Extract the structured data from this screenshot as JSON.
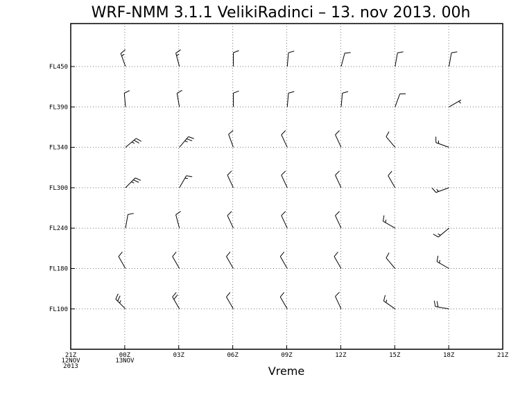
{
  "chart_data": {
    "type": "wind_barbs",
    "title": "WRF-NMM 3.1.1 VelikiRadinci – 13. nov 2013. 00h",
    "xlabel": "Vreme",
    "ylabel": "",
    "x_ticks": [
      {
        "label": "21Z",
        "sub": [
          "12NOV",
          "2013"
        ]
      },
      {
        "label": "00Z",
        "sub": [
          "13NOV"
        ]
      },
      {
        "label": "03Z",
        "sub": []
      },
      {
        "label": "06Z",
        "sub": []
      },
      {
        "label": "09Z",
        "sub": []
      },
      {
        "label": "12Z",
        "sub": []
      },
      {
        "label": "15Z",
        "sub": []
      },
      {
        "label": "18Z",
        "sub": []
      },
      {
        "label": "21Z",
        "sub": []
      }
    ],
    "levels": [
      "FL450",
      "FL390",
      "FL340",
      "FL300",
      "FL240",
      "FL180",
      "FL100"
    ],
    "times": [
      "00Z",
      "03Z",
      "06Z",
      "09Z",
      "12Z",
      "15Z",
      "18Z"
    ],
    "barbs": [
      [
        {
          "dir": 340,
          "spd": 15
        },
        {
          "dir": 345,
          "spd": 15
        },
        {
          "dir": 0,
          "spd": 10
        },
        {
          "dir": 5,
          "spd": 10
        },
        {
          "dir": 15,
          "spd": 10
        },
        {
          "dir": 10,
          "spd": 10
        },
        {
          "dir": 10,
          "spd": 10
        }
      ],
      [
        {
          "dir": 355,
          "spd": 10
        },
        {
          "dir": 350,
          "spd": 10
        },
        {
          "dir": 0,
          "spd": 10
        },
        {
          "dir": 5,
          "spd": 10
        },
        {
          "dir": 5,
          "spd": 10
        },
        {
          "dir": 20,
          "spd": 10
        },
        {
          "dir": 60,
          "spd": 5
        }
      ],
      [
        {
          "dir": 50,
          "spd": 25
        },
        {
          "dir": 40,
          "spd": 25
        },
        {
          "dir": 340,
          "spd": 10
        },
        {
          "dir": 335,
          "spd": 10
        },
        {
          "dir": 335,
          "spd": 10
        },
        {
          "dir": 320,
          "spd": 10
        },
        {
          "dir": 290,
          "spd": 15
        }
      ],
      [
        {
          "dir": 45,
          "spd": 25
        },
        {
          "dir": 30,
          "spd": 15
        },
        {
          "dir": 335,
          "spd": 10
        },
        {
          "dir": 335,
          "spd": 10
        },
        {
          "dir": 335,
          "spd": 10
        },
        {
          "dir": 330,
          "spd": 10
        },
        {
          "dir": 250,
          "spd": 15
        }
      ],
      [
        {
          "dir": 10,
          "spd": 10
        },
        {
          "dir": 345,
          "spd": 10
        },
        {
          "dir": 335,
          "spd": 10
        },
        {
          "dir": 335,
          "spd": 10
        },
        {
          "dir": 335,
          "spd": 10
        },
        {
          "dir": 300,
          "spd": 15
        },
        {
          "dir": 230,
          "spd": 15
        }
      ],
      [
        {
          "dir": 330,
          "spd": 10
        },
        {
          "dir": 330,
          "spd": 10
        },
        {
          "dir": 330,
          "spd": 10
        },
        {
          "dir": 330,
          "spd": 10
        },
        {
          "dir": 330,
          "spd": 10
        },
        {
          "dir": 320,
          "spd": 10
        },
        {
          "dir": 300,
          "spd": 15
        }
      ],
      [
        {
          "dir": 315,
          "spd": 25
        },
        {
          "dir": 330,
          "spd": 20
        },
        {
          "dir": 330,
          "spd": 10
        },
        {
          "dir": 330,
          "spd": 10
        },
        {
          "dir": 335,
          "spd": 10
        },
        {
          "dir": 305,
          "spd": 15
        },
        {
          "dir": 280,
          "spd": 20
        }
      ]
    ],
    "grid": true,
    "legend": "none"
  }
}
